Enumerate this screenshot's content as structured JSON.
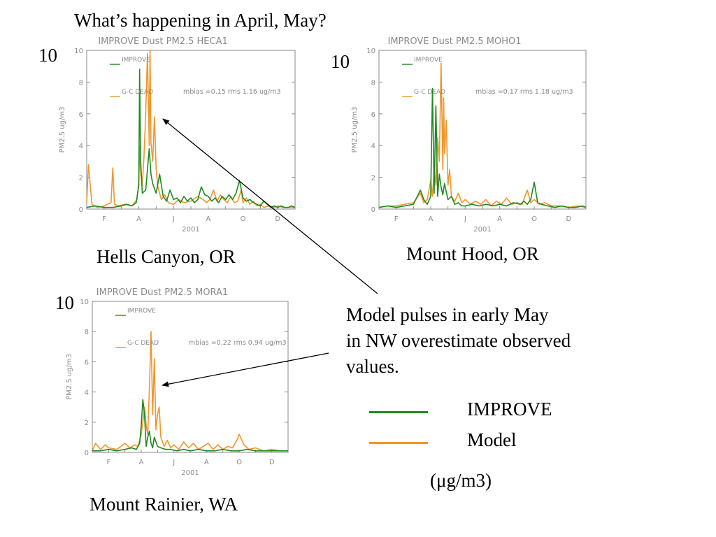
{
  "slide": {
    "title": "What’s happening in April, May?",
    "annotation_lines": [
      "Model pulses in early May",
      "in NW overestimate observed",
      "values."
    ],
    "units": "(μg/m3)",
    "legend": [
      {
        "label": "IMPROVE",
        "color": "#1f8a1f"
      },
      {
        "label": "Model",
        "color": "#f0962a"
      }
    ]
  },
  "sites": [
    {
      "name": "Hells Canyon, OR",
      "big_ylabel": "10"
    },
    {
      "name": "Mount Hood, OR",
      "big_ylabel": "10"
    },
    {
      "name": "Mount Rainier, WA",
      "big_ylabel": "10"
    }
  ],
  "chart_data": [
    {
      "type": "line",
      "title": "IMPROVE Dust PM2.5 HECA1",
      "xlabel": "2001",
      "ylabel": "PM2.5 ug/m3",
      "ylim": [
        0,
        10
      ],
      "yticks": [
        0,
        2,
        4,
        6,
        8,
        10
      ],
      "xlim": [
        1,
        13
      ],
      "xticks": [
        {
          "x": 2,
          "label": "F"
        },
        {
          "x": 4,
          "label": "A"
        },
        {
          "x": 6,
          "label": "J"
        },
        {
          "x": 8,
          "label": "A"
        },
        {
          "x": 10,
          "label": "O"
        },
        {
          "x": 12,
          "label": "D"
        }
      ],
      "stats": "mbias =0.15 rms 1.16 ug/m3",
      "series": [
        {
          "name": "IMPROVE",
          "color": "#1f8a1f",
          "x": [
            1.0,
            1.5,
            2.0,
            2.5,
            3.0,
            3.3,
            3.6,
            3.85,
            4.0,
            4.05,
            4.1,
            4.2,
            4.4,
            4.6,
            4.7,
            4.8,
            5.0,
            5.2,
            5.4,
            5.6,
            5.8,
            6.0,
            6.2,
            6.4,
            6.6,
            6.8,
            7.0,
            7.2,
            7.4,
            7.6,
            7.8,
            8.0,
            8.2,
            8.4,
            8.6,
            8.8,
            9.0,
            9.2,
            9.4,
            9.6,
            9.8,
            10.0,
            10.2,
            10.4,
            10.6,
            10.8,
            11.0,
            11.2,
            11.4,
            11.6,
            11.8,
            12.0,
            12.2,
            12.4,
            12.6,
            12.8,
            13.0
          ],
          "y": [
            0.1,
            0.2,
            0.1,
            0.1,
            0.2,
            0.3,
            0.2,
            0.4,
            1.5,
            8.8,
            3.2,
            1.0,
            1.2,
            3.8,
            2.2,
            1.6,
            1.0,
            2.2,
            0.8,
            0.5,
            1.2,
            0.6,
            0.7,
            0.4,
            0.8,
            0.5,
            0.7,
            0.4,
            0.6,
            1.4,
            0.9,
            0.8,
            0.5,
            0.7,
            0.4,
            0.8,
            0.6,
            0.9,
            0.6,
            1.0,
            1.8,
            0.7,
            0.5,
            0.6,
            0.4,
            0.3,
            0.2,
            0.5,
            0.3,
            0.1,
            0.2,
            0.1,
            0.2,
            0.1,
            0.1,
            0.2,
            0.1
          ]
        },
        {
          "name": "G-C DEAD",
          "color": "#f0962a",
          "x": [
            1.0,
            1.1,
            1.3,
            1.6,
            2.0,
            2.4,
            2.5,
            2.6,
            2.8,
            3.2,
            3.6,
            3.9,
            4.0,
            4.05,
            4.1,
            4.2,
            4.3,
            4.4,
            4.5,
            4.6,
            4.65,
            4.7,
            4.8,
            4.9,
            5.0,
            5.1,
            5.3,
            5.5,
            5.7,
            6.0,
            6.3,
            6.6,
            7.0,
            7.4,
            7.7,
            7.9,
            8.1,
            8.3,
            8.5,
            8.7,
            8.9,
            9.1,
            9.3,
            9.5,
            9.7,
            9.9,
            10.0,
            10.2,
            10.4,
            10.6,
            10.8,
            11.0,
            11.2,
            11.5,
            11.8,
            12.0,
            12.3,
            12.6,
            13.0
          ],
          "y": [
            0.4,
            2.8,
            0.3,
            0.1,
            0.2,
            0.4,
            2.6,
            0.3,
            0.2,
            0.3,
            0.2,
            0.6,
            1.8,
            4.0,
            2.4,
            1.5,
            3.3,
            6.0,
            9.8,
            4.0,
            10.0,
            4.2,
            3.0,
            5.8,
            2.5,
            1.4,
            0.6,
            0.9,
            0.4,
            0.3,
            0.6,
            0.4,
            0.5,
            0.8,
            0.6,
            0.4,
            0.6,
            1.2,
            0.5,
            0.9,
            0.6,
            0.4,
            0.8,
            0.4,
            0.5,
            1.2,
            0.4,
            0.7,
            0.3,
            0.5,
            0.2,
            0.3,
            0.1,
            0.2,
            0.1,
            0.2,
            0.1,
            0.1,
            0.1
          ]
        }
      ]
    },
    {
      "type": "line",
      "title": "IMPROVE Dust PM2.5 MOHO1",
      "xlabel": "2001",
      "ylabel": "PM2.5 ug/m3",
      "ylim": [
        0,
        10
      ],
      "yticks": [
        0,
        2,
        4,
        6,
        8,
        10
      ],
      "xlim": [
        1,
        13
      ],
      "xticks": [
        {
          "x": 2,
          "label": "F"
        },
        {
          "x": 4,
          "label": "A"
        },
        {
          "x": 6,
          "label": "J"
        },
        {
          "x": 8,
          "label": "A"
        },
        {
          "x": 10,
          "label": "O"
        },
        {
          "x": 12,
          "label": "D"
        }
      ],
      "stats": "mbias =0.17 rms 1.18 ug/m3",
      "series": [
        {
          "name": "IMPROVE",
          "color": "#1f8a1f",
          "x": [
            1.0,
            1.5,
            2.0,
            2.5,
            3.0,
            3.4,
            3.6,
            3.8,
            4.0,
            4.1,
            4.2,
            4.3,
            4.4,
            4.5,
            4.6,
            4.7,
            4.8,
            5.0,
            5.2,
            5.4,
            5.6,
            5.8,
            6.0,
            6.4,
            6.8,
            7.2,
            7.6,
            8.0,
            8.4,
            8.8,
            9.2,
            9.4,
            9.6,
            9.8,
            10.0,
            10.2,
            10.4,
            10.8,
            11.2,
            11.6,
            12.0,
            12.4,
            12.8,
            13.0
          ],
          "y": [
            0.1,
            0.2,
            0.1,
            0.2,
            0.3,
            1.2,
            0.6,
            0.3,
            0.8,
            7.6,
            1.0,
            6.5,
            0.8,
            2.2,
            1.4,
            0.9,
            1.6,
            0.6,
            0.8,
            0.3,
            0.4,
            0.2,
            0.2,
            0.3,
            0.2,
            0.3,
            0.2,
            0.3,
            0.2,
            0.4,
            0.3,
            0.5,
            0.3,
            0.6,
            1.7,
            0.4,
            0.3,
            0.2,
            0.1,
            0.2,
            0.1,
            0.1,
            0.2,
            0.1
          ]
        },
        {
          "name": "G-C DEAD",
          "color": "#f0962a",
          "x": [
            1.0,
            1.5,
            2.0,
            2.5,
            3.0,
            3.4,
            3.6,
            3.8,
            4.0,
            4.1,
            4.2,
            4.3,
            4.4,
            4.5,
            4.6,
            4.7,
            4.75,
            4.8,
            4.9,
            5.0,
            5.1,
            5.2,
            5.4,
            5.6,
            5.8,
            6.0,
            6.3,
            6.6,
            6.9,
            7.2,
            7.5,
            7.8,
            8.1,
            8.4,
            8.7,
            9.0,
            9.3,
            9.6,
            9.8,
            10.0,
            10.3,
            10.6,
            11.0,
            11.5,
            12.0,
            12.5,
            13.0
          ],
          "y": [
            0.1,
            0.2,
            0.2,
            0.3,
            0.4,
            1.0,
            0.4,
            0.6,
            1.8,
            0.8,
            2.5,
            1.5,
            4.5,
            3.0,
            9.2,
            2.5,
            7.0,
            3.5,
            5.6,
            1.5,
            2.5,
            0.8,
            0.5,
            1.0,
            0.4,
            0.6,
            0.3,
            0.5,
            0.3,
            0.6,
            0.2,
            0.5,
            0.3,
            0.7,
            0.3,
            0.4,
            0.3,
            1.2,
            0.4,
            0.6,
            0.3,
            0.4,
            0.2,
            0.2,
            0.1,
            0.2,
            0.1
          ]
        }
      ]
    },
    {
      "type": "line",
      "title": "IMPROVE Dust PM2.5 MORA1",
      "xlabel": "2001",
      "ylabel": "PM2.5 ug/m3",
      "ylim": [
        0,
        10
      ],
      "yticks": [
        0,
        2,
        4,
        6,
        8,
        10
      ],
      "xlim": [
        1,
        13
      ],
      "xticks": [
        {
          "x": 2,
          "label": "F"
        },
        {
          "x": 4,
          "label": "A"
        },
        {
          "x": 6,
          "label": "J"
        },
        {
          "x": 8,
          "label": "A"
        },
        {
          "x": 10,
          "label": "O"
        },
        {
          "x": 12,
          "label": "D"
        }
      ],
      "stats": "mbias =0.22 rms 0.94 ug/m3",
      "series": [
        {
          "name": "IMPROVE",
          "color": "#1f8a1f",
          "x": [
            1.0,
            1.5,
            2.0,
            2.5,
            3.0,
            3.4,
            3.7,
            3.9,
            4.0,
            4.1,
            4.2,
            4.3,
            4.4,
            4.5,
            4.6,
            4.7,
            4.8,
            5.0,
            5.2,
            5.5,
            5.8,
            6.2,
            6.6,
            7.0,
            7.5,
            8.0,
            8.5,
            9.0,
            9.5,
            10.0,
            10.5,
            11.0,
            11.5,
            12.0,
            12.5,
            13.0
          ],
          "y": [
            0.1,
            0.1,
            0.2,
            0.1,
            0.2,
            0.3,
            0.2,
            0.6,
            1.8,
            3.5,
            2.5,
            0.4,
            1.0,
            1.4,
            0.6,
            0.3,
            1.0,
            0.4,
            0.3,
            0.2,
            0.2,
            0.1,
            0.2,
            0.1,
            0.2,
            0.1,
            0.1,
            0.2,
            0.1,
            0.1,
            0.2,
            0.1,
            0.1,
            0.1,
            0.1,
            0.1
          ]
        },
        {
          "name": "G-C DEAD",
          "color": "#f0962a",
          "x": [
            1.0,
            1.2,
            1.5,
            1.8,
            2.0,
            2.5,
            3.0,
            3.3,
            3.6,
            3.8,
            4.0,
            4.1,
            4.2,
            4.3,
            4.4,
            4.5,
            4.6,
            4.7,
            4.8,
            4.9,
            5.0,
            5.1,
            5.2,
            5.4,
            5.6,
            5.8,
            6.0,
            6.3,
            6.6,
            6.9,
            7.2,
            7.5,
            7.8,
            8.1,
            8.4,
            8.7,
            9.0,
            9.3,
            9.6,
            9.9,
            10.0,
            10.3,
            10.6,
            11.0,
            11.5,
            12.0,
            12.5,
            13.0
          ],
          "y": [
            0.1,
            0.6,
            0.2,
            0.5,
            0.3,
            0.2,
            0.6,
            0.3,
            0.5,
            0.4,
            1.2,
            2.0,
            3.0,
            1.8,
            1.2,
            4.3,
            8.0,
            2.5,
            6.2,
            1.5,
            2.5,
            3.0,
            1.0,
            0.4,
            0.8,
            0.3,
            0.5,
            0.2,
            0.7,
            0.3,
            0.6,
            0.2,
            0.4,
            0.6,
            0.2,
            0.5,
            0.2,
            0.4,
            0.3,
            0.9,
            1.2,
            0.5,
            0.2,
            0.3,
            0.1,
            0.2,
            0.1,
            0.1
          ]
        }
      ]
    }
  ]
}
